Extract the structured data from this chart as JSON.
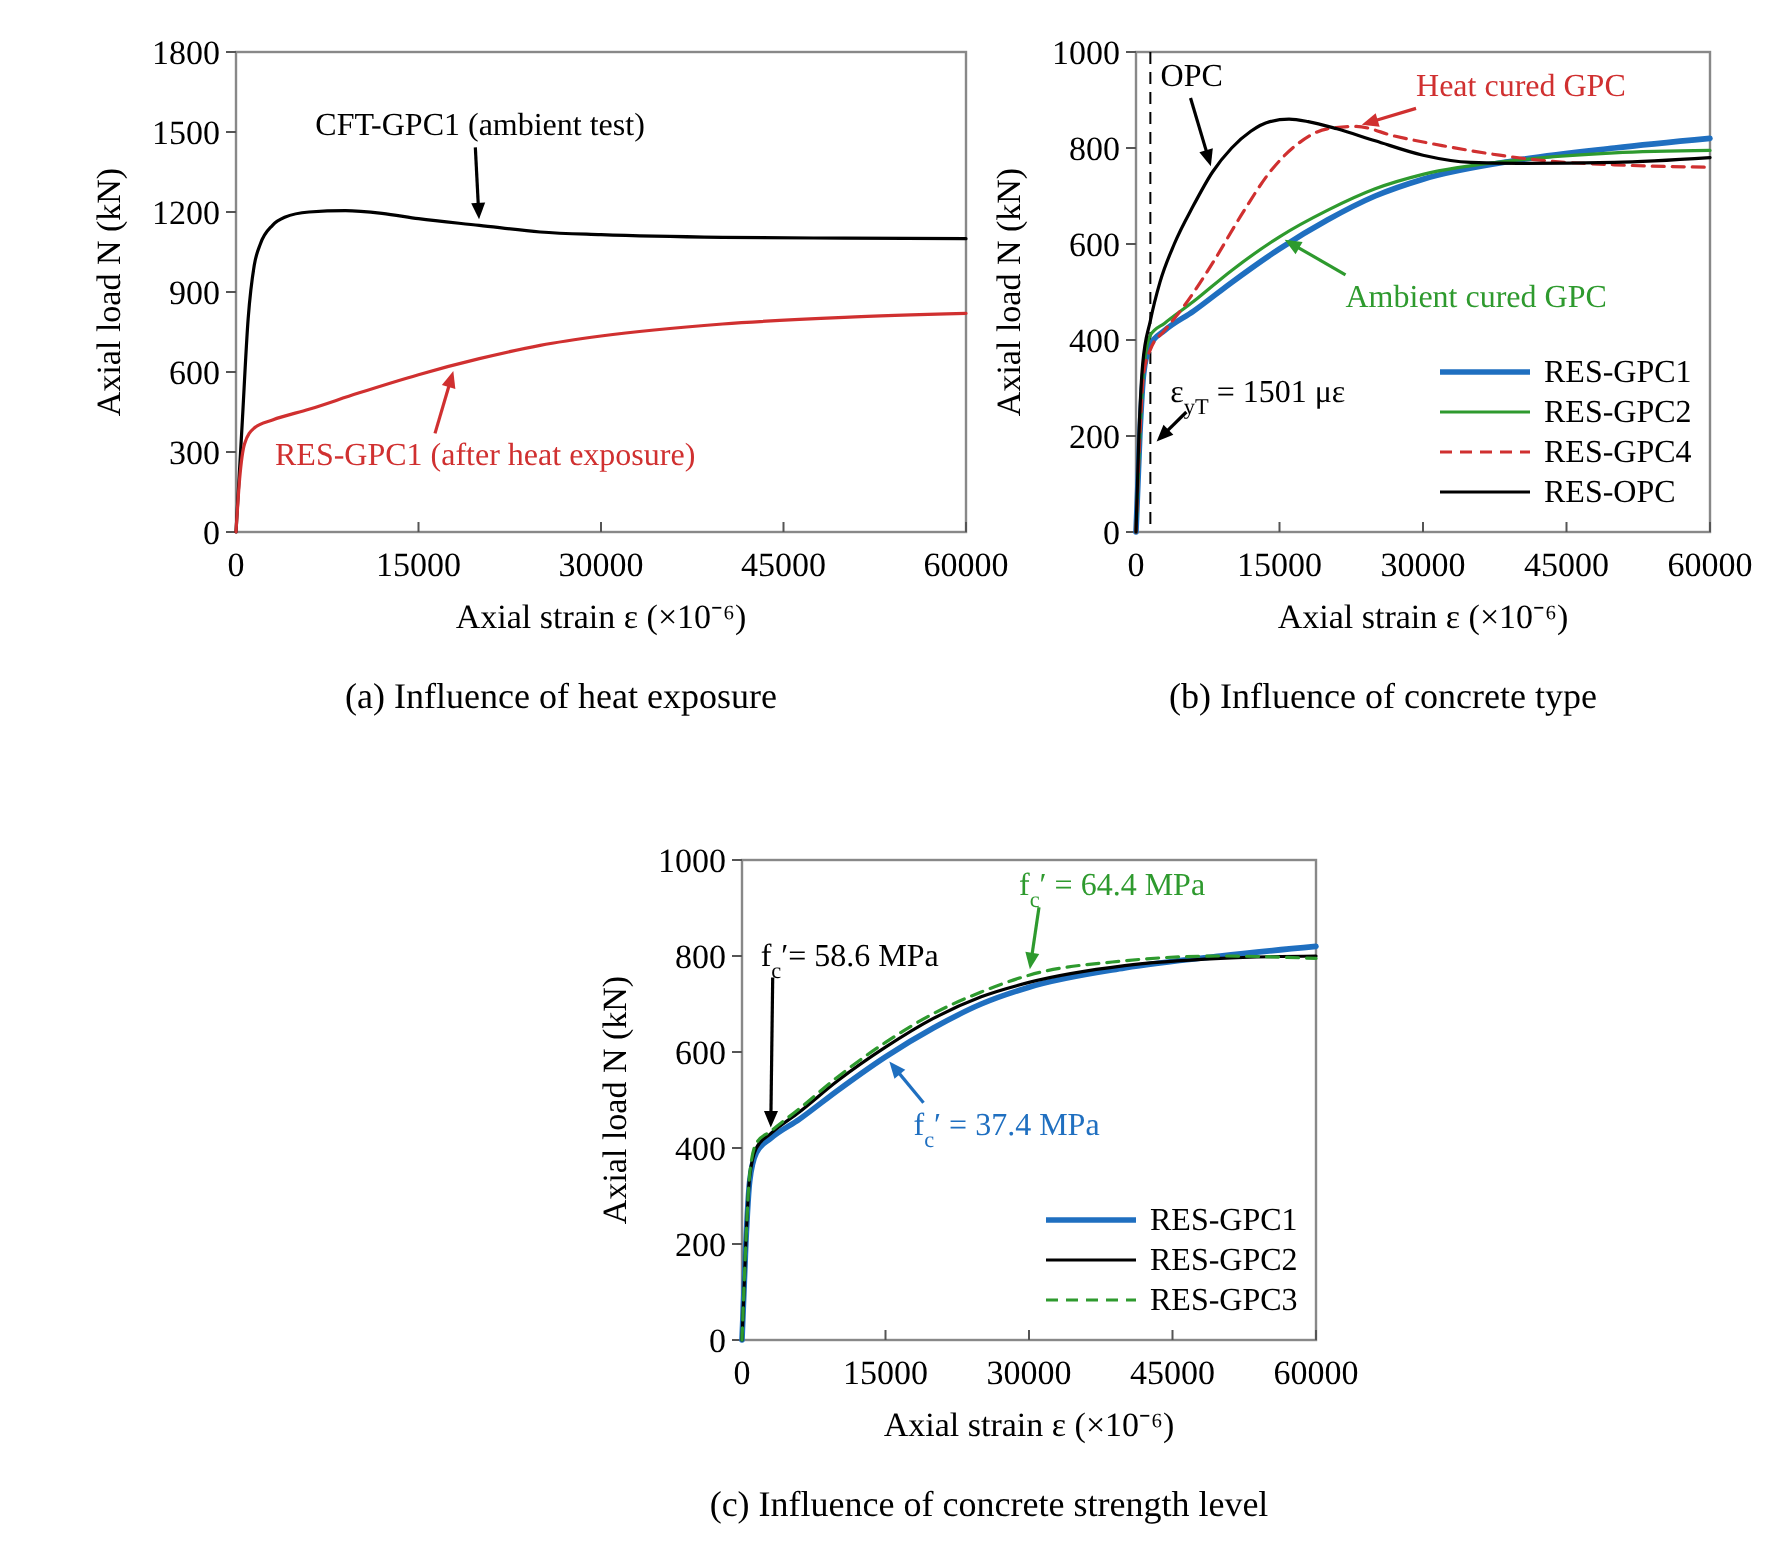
{
  "chart_data": [
    {
      "type": "line",
      "title": "(a) Influence of heat exposure",
      "xlabel": "Axial strain ε (×10⁻⁶)",
      "ylabel": "Axial load N (kN)",
      "xlim": [
        0,
        60000
      ],
      "ylim": [
        0,
        1800
      ],
      "xticks": [
        0,
        15000,
        30000,
        45000,
        60000
      ],
      "yticks": [
        0,
        300,
        600,
        900,
        1200,
        1500,
        1800
      ],
      "legend": false,
      "grid": false,
      "series": [
        {
          "color": "#000000",
          "x": [
            0,
            500,
            1000,
            1500,
            2000,
            3000,
            4000,
            6000,
            9000,
            12000,
            15000,
            20000,
            25000,
            30000,
            40000,
            50000,
            60000
          ],
          "values": [
            0,
            400,
            800,
            1000,
            1080,
            1150,
            1180,
            1200,
            1205,
            1195,
            1175,
            1150,
            1125,
            1115,
            1105,
            1102,
            1100
          ]
        },
        {
          "color": "#d03030",
          "x": [
            0,
            300,
            700,
            1500,
            3000,
            6000,
            10000,
            15000,
            20000,
            25000,
            30000,
            40000,
            50000,
            60000
          ],
          "values": [
            0,
            200,
            330,
            390,
            420,
            460,
            520,
            590,
            650,
            700,
            735,
            780,
            805,
            820
          ]
        }
      ],
      "annotations": [
        {
          "text": "CFT-GPC1 (ambient test)",
          "x": 20000,
          "y": 1150
        },
        {
          "text": "RES-GPC1 (after heat exposure)",
          "x": 18000,
          "y": 625
        }
      ]
    },
    {
      "type": "line",
      "title": "(b) Influence of concrete type",
      "xlabel": "Axial strain ε (×10⁻⁶)",
      "ylabel": "Axial load N (kN)",
      "xlim": [
        0,
        60000
      ],
      "ylim": [
        0,
        1000
      ],
      "xticks": [
        0,
        15000,
        30000,
        45000,
        60000
      ],
      "yticks": [
        0,
        200,
        400,
        600,
        800,
        1000
      ],
      "legend": "bottom right",
      "grid": false,
      "series": [
        {
          "name": "RES-GPC1",
          "color": "#1f6fc0",
          "x": [
            0,
            400,
            800,
            1500,
            3000,
            6000,
            10000,
            15000,
            20000,
            25000,
            30000,
            40000,
            50000,
            60000
          ],
          "values": [
            0,
            200,
            330,
            390,
            420,
            460,
            520,
            590,
            650,
            700,
            735,
            775,
            800,
            820
          ]
        },
        {
          "name": "RES-GPC2",
          "color": "#2e9a2e",
          "x": [
            0,
            400,
            800,
            1500,
            3000,
            6000,
            10000,
            15000,
            20000,
            25000,
            30000,
            40000,
            50000,
            60000
          ],
          "values": [
            0,
            200,
            340,
            410,
            435,
            480,
            545,
            615,
            670,
            715,
            745,
            775,
            790,
            795
          ]
        },
        {
          "name": "RES-GPC4",
          "color": "#d03030",
          "line_style": "dashed",
          "x": [
            0,
            400,
            800,
            1500,
            3000,
            5000,
            8000,
            11000,
            14000,
            17000,
            20000,
            23000,
            27000,
            32000,
            38000,
            42000,
            50000,
            60000
          ],
          "values": [
            0,
            200,
            330,
            380,
            420,
            470,
            560,
            660,
            750,
            810,
            840,
            845,
            825,
            805,
            785,
            775,
            765,
            760
          ]
        },
        {
          "name": "RES-OPC",
          "color": "#000000",
          "x": [
            0,
            300,
            700,
            1500,
            2500,
            4000,
            6000,
            8000,
            10000,
            12000,
            14000,
            16000,
            18000,
            21000,
            25000,
            30000,
            35000,
            40000,
            50000,
            60000
          ],
          "values": [
            0,
            200,
            350,
            440,
            520,
            600,
            680,
            750,
            800,
            835,
            855,
            860,
            855,
            840,
            815,
            785,
            770,
            768,
            770,
            780
          ]
        }
      ],
      "ref_lines": [
        {
          "axis": "x",
          "value": 1501,
          "label": "ε$_{yT}$ = 1501 με",
          "line_style": "dashed",
          "color": "#000000"
        }
      ],
      "annotations": [
        {
          "text": "OPC",
          "x": 8000,
          "y": 750
        },
        {
          "text": "Heat cured GPC",
          "x": 23000,
          "y": 845
        },
        {
          "text": "Ambient cured GPC",
          "x": 15000,
          "y": 615
        }
      ]
    },
    {
      "type": "line",
      "title": "(c) Influence of concrete strength level",
      "xlabel": "Axial strain ε (×10⁻⁶)",
      "ylabel": "Axial load N (kN)",
      "xlim": [
        0,
        60000
      ],
      "ylim": [
        0,
        1000
      ],
      "xticks": [
        0,
        15000,
        30000,
        45000,
        60000
      ],
      "yticks": [
        0,
        200,
        400,
        600,
        800,
        1000
      ],
      "legend": "bottom right",
      "grid": false,
      "series": [
        {
          "name": "RES-GPC1",
          "color": "#1f6fc0",
          "x": [
            0,
            400,
            800,
            1500,
            3000,
            6000,
            10000,
            15000,
            20000,
            25000,
            30000,
            40000,
            50000,
            60000
          ],
          "values": [
            0,
            200,
            330,
            390,
            420,
            460,
            520,
            590,
            650,
            700,
            735,
            775,
            800,
            820
          ]
        },
        {
          "name": "RES-GPC2",
          "color": "#000000",
          "x": [
            0,
            400,
            800,
            1500,
            3000,
            6000,
            10000,
            15000,
            20000,
            25000,
            30000,
            40000,
            50000,
            60000
          ],
          "values": [
            0,
            200,
            340,
            400,
            430,
            475,
            540,
            610,
            670,
            715,
            745,
            780,
            795,
            800
          ]
        },
        {
          "name": "RES-GPC3",
          "color": "#2e9a2e",
          "line_style": "dashed",
          "x": [
            0,
            400,
            800,
            1500,
            3000,
            6000,
            10000,
            15000,
            20000,
            25000,
            30000,
            40000,
            50000,
            60000
          ],
          "values": [
            0,
            200,
            345,
            410,
            435,
            482,
            548,
            620,
            680,
            725,
            760,
            790,
            800,
            795
          ]
        }
      ],
      "annotations": [
        {
          "text": "f$_{c}$′ = 64.4 MPa",
          "x": 30000,
          "y": 760
        },
        {
          "text": "f$_{c}$′= 58.6 MPa",
          "x": 3000,
          "y": 430
        },
        {
          "text": "f$_{c}$′ = 37.4 MPa",
          "x": 15000,
          "y": 590
        }
      ]
    }
  ]
}
